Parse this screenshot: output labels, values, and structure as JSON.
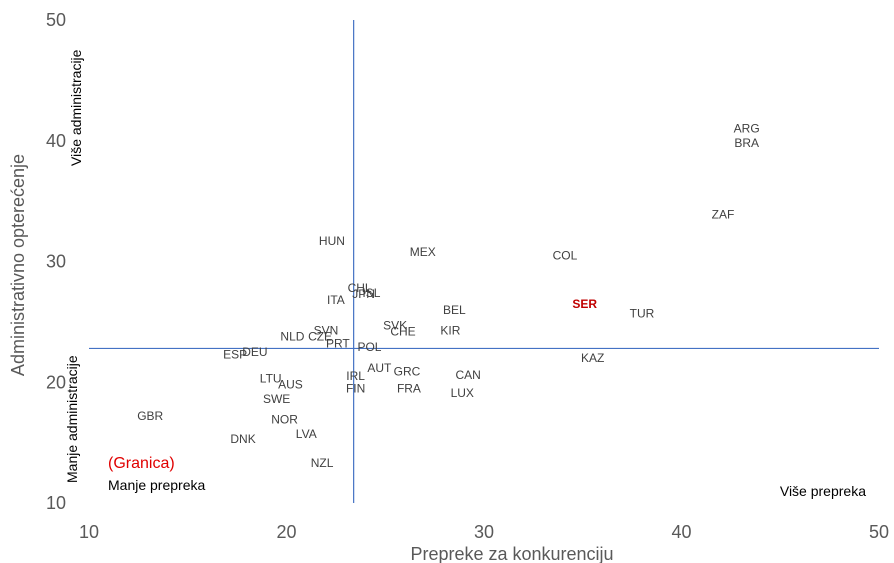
{
  "chart_data": {
    "type": "scatter",
    "xlabel": "Prepreke za konkurenciju",
    "ylabel": "Administrativno opterećenje",
    "xlim": [
      10,
      50
    ],
    "ylim": [
      10,
      50
    ],
    "xticks": [
      "10",
      "20",
      "30",
      "40",
      "50"
    ],
    "yticks": [
      "10",
      "20",
      "30",
      "40",
      "50"
    ],
    "grid": false,
    "reference_lines": {
      "x": 23.4,
      "y": 22.8
    },
    "points": [
      {
        "label": "ARG",
        "x": 43.3,
        "y": 41.0
      },
      {
        "label": "BRA",
        "x": 43.3,
        "y": 39.8
      },
      {
        "label": "ZAF",
        "x": 42.1,
        "y": 33.9
      },
      {
        "label": "COL",
        "x": 34.1,
        "y": 30.5
      },
      {
        "label": "MEX",
        "x": 26.9,
        "y": 30.8
      },
      {
        "label": "HUN",
        "x": 22.3,
        "y": 31.7
      },
      {
        "label": "CHL",
        "x": 23.7,
        "y": 27.8
      },
      {
        "label": "JPN",
        "x": 23.9,
        "y": 27.3
      },
      {
        "label": "ISL",
        "x": 24.3,
        "y": 27.4
      },
      {
        "label": "ITA",
        "x": 22.5,
        "y": 26.8
      },
      {
        "label": "SER",
        "x": 35.1,
        "y": 26.5,
        "highlight": true
      },
      {
        "label": "TUR",
        "x": 38.0,
        "y": 25.7
      },
      {
        "label": "BEL",
        "x": 28.5,
        "y": 26.0
      },
      {
        "label": "SVK",
        "x": 25.5,
        "y": 24.7
      },
      {
        "label": "CHE",
        "x": 25.9,
        "y": 24.2
      },
      {
        "label": "KIR",
        "x": 28.3,
        "y": 24.3
      },
      {
        "label": "SVN",
        "x": 22.0,
        "y": 24.3
      },
      {
        "label": "NLD",
        "x": 20.3,
        "y": 23.8
      },
      {
        "label": "CZE",
        "x": 21.7,
        "y": 23.8
      },
      {
        "label": "PRT",
        "x": 22.6,
        "y": 23.2
      },
      {
        "label": "POL",
        "x": 24.2,
        "y": 22.9
      },
      {
        "label": "DEU",
        "x": 18.4,
        "y": 22.5
      },
      {
        "label": "ESP",
        "x": 17.4,
        "y": 22.3
      },
      {
        "label": "KAZ",
        "x": 35.5,
        "y": 22.0
      },
      {
        "label": "AUT",
        "x": 24.7,
        "y": 21.2
      },
      {
        "label": "GRC",
        "x": 26.1,
        "y": 20.9
      },
      {
        "label": "CAN",
        "x": 29.2,
        "y": 20.6
      },
      {
        "label": "IRL",
        "x": 23.5,
        "y": 20.5
      },
      {
        "label": "LTU",
        "x": 19.2,
        "y": 20.3
      },
      {
        "label": "AUS",
        "x": 20.2,
        "y": 19.8
      },
      {
        "label": "FIN",
        "x": 23.5,
        "y": 19.5
      },
      {
        "label": "FRA",
        "x": 26.2,
        "y": 19.5
      },
      {
        "label": "LUX",
        "x": 28.9,
        "y": 19.1
      },
      {
        "label": "SWE",
        "x": 19.5,
        "y": 18.6
      },
      {
        "label": "GBR",
        "x": 13.1,
        "y": 17.2
      },
      {
        "label": "NOR",
        "x": 19.9,
        "y": 16.9
      },
      {
        "label": "LVA",
        "x": 21.0,
        "y": 15.7
      },
      {
        "label": "DNK",
        "x": 17.8,
        "y": 15.3
      },
      {
        "label": "NZL",
        "x": 21.8,
        "y": 13.3
      }
    ],
    "annotations": {
      "top_left_vertical": "Više administracije",
      "bottom_left_vertical": "Manje administracije",
      "bottom_left_red": "(Granica)",
      "bottom_left": "Manje prepreka",
      "bottom_right": "Više prepreka"
    }
  }
}
